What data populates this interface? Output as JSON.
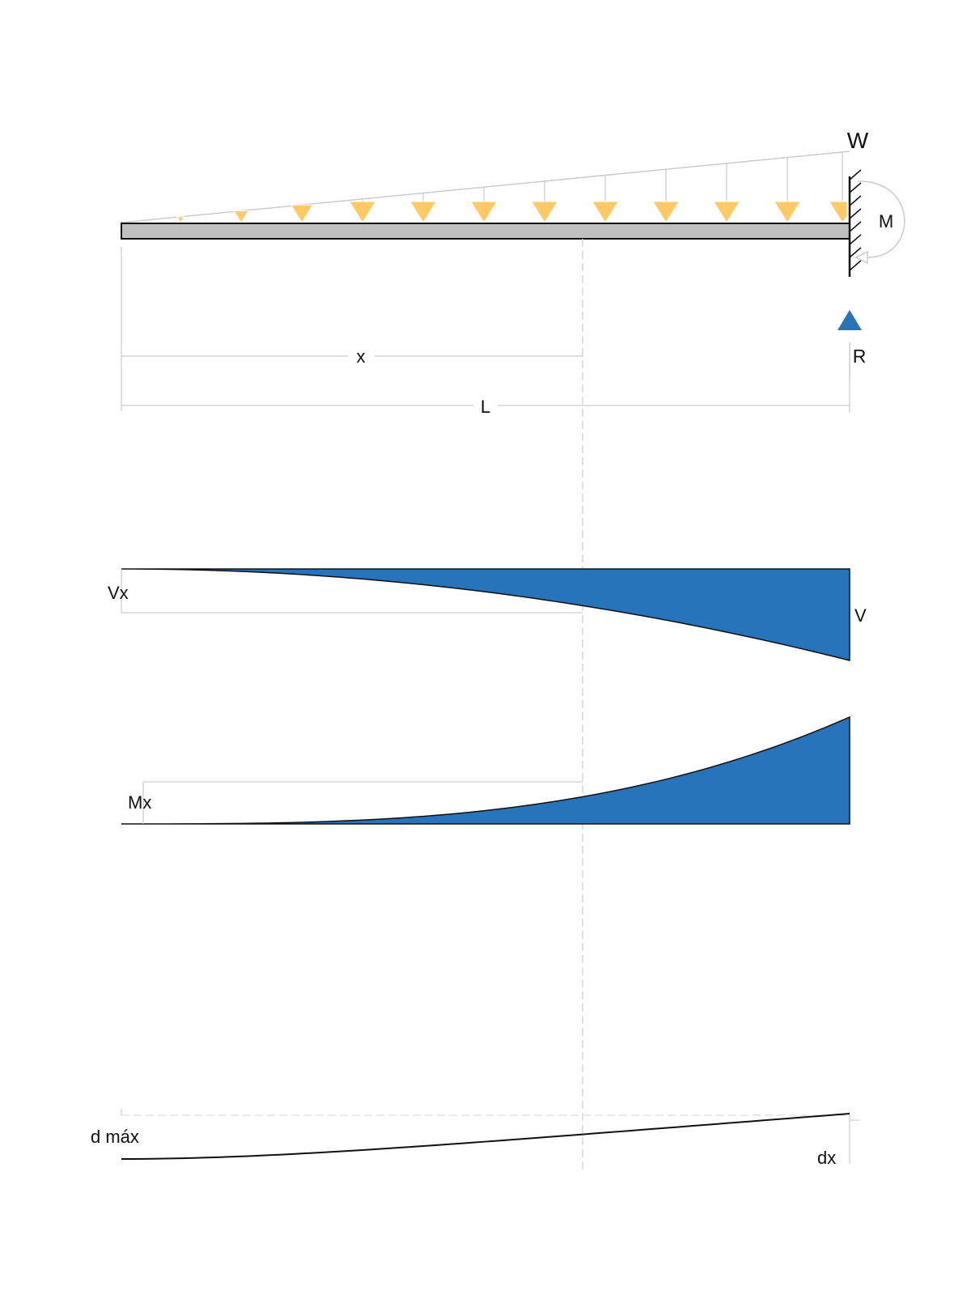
{
  "labels": {
    "load": "W",
    "moment": "M",
    "reaction": "R",
    "position": "x",
    "length": "L",
    "shear_at_x": "Vx",
    "shear_max": "V",
    "moment_at_x": "Mx",
    "deflection_max": "d máx",
    "deflection_at_x": "dx"
  },
  "colors": {
    "load_arrow": "#FFC966",
    "diagram_fill": "#2874BA",
    "beam": "#C0C0C0",
    "reaction_arrow": "#2874BA",
    "guide_line": "#CCCCCC"
  },
  "load": {
    "type": "linearly increasing distributed load",
    "arrow_count": 12
  }
}
